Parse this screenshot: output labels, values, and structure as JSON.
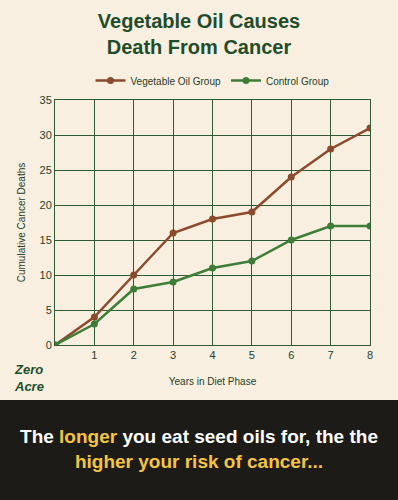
{
  "chart_data": {
    "type": "line",
    "title": "Vegetable Oil Causes Death From Cancer",
    "x_label": "Years in Diet Phase",
    "y_label": "Cumulative Cancer Deaths",
    "x": [
      0,
      1,
      2,
      3,
      4,
      5,
      6,
      7,
      8
    ],
    "series": [
      {
        "name": "Vegetable Oil Group",
        "color": "#8b4a2b",
        "marker": "circle",
        "line_style": "solid",
        "values": [
          0,
          4,
          10,
          16,
          18,
          19,
          24,
          28,
          31
        ]
      },
      {
        "name": "Control Group",
        "color": "#3e7d37",
        "marker": "circle",
        "line_style": "solid",
        "values": [
          0,
          3,
          8,
          9,
          11,
          12,
          15,
          17,
          17
        ]
      }
    ],
    "xlim": [
      0,
      8
    ],
    "xticks": [
      1,
      2,
      3,
      4,
      5,
      6,
      7,
      8
    ],
    "ylim": [
      0,
      35
    ],
    "yticks": [
      0,
      5,
      10,
      15,
      20,
      25,
      30,
      35
    ],
    "grid": true,
    "legend": "top"
  },
  "logo": "Zero Acre",
  "caption": {
    "text": "The longer you eat seed oils for, the the higher your risk of cancer...",
    "highlights": [
      "longer",
      "higher your risk of cancer..."
    ]
  }
}
